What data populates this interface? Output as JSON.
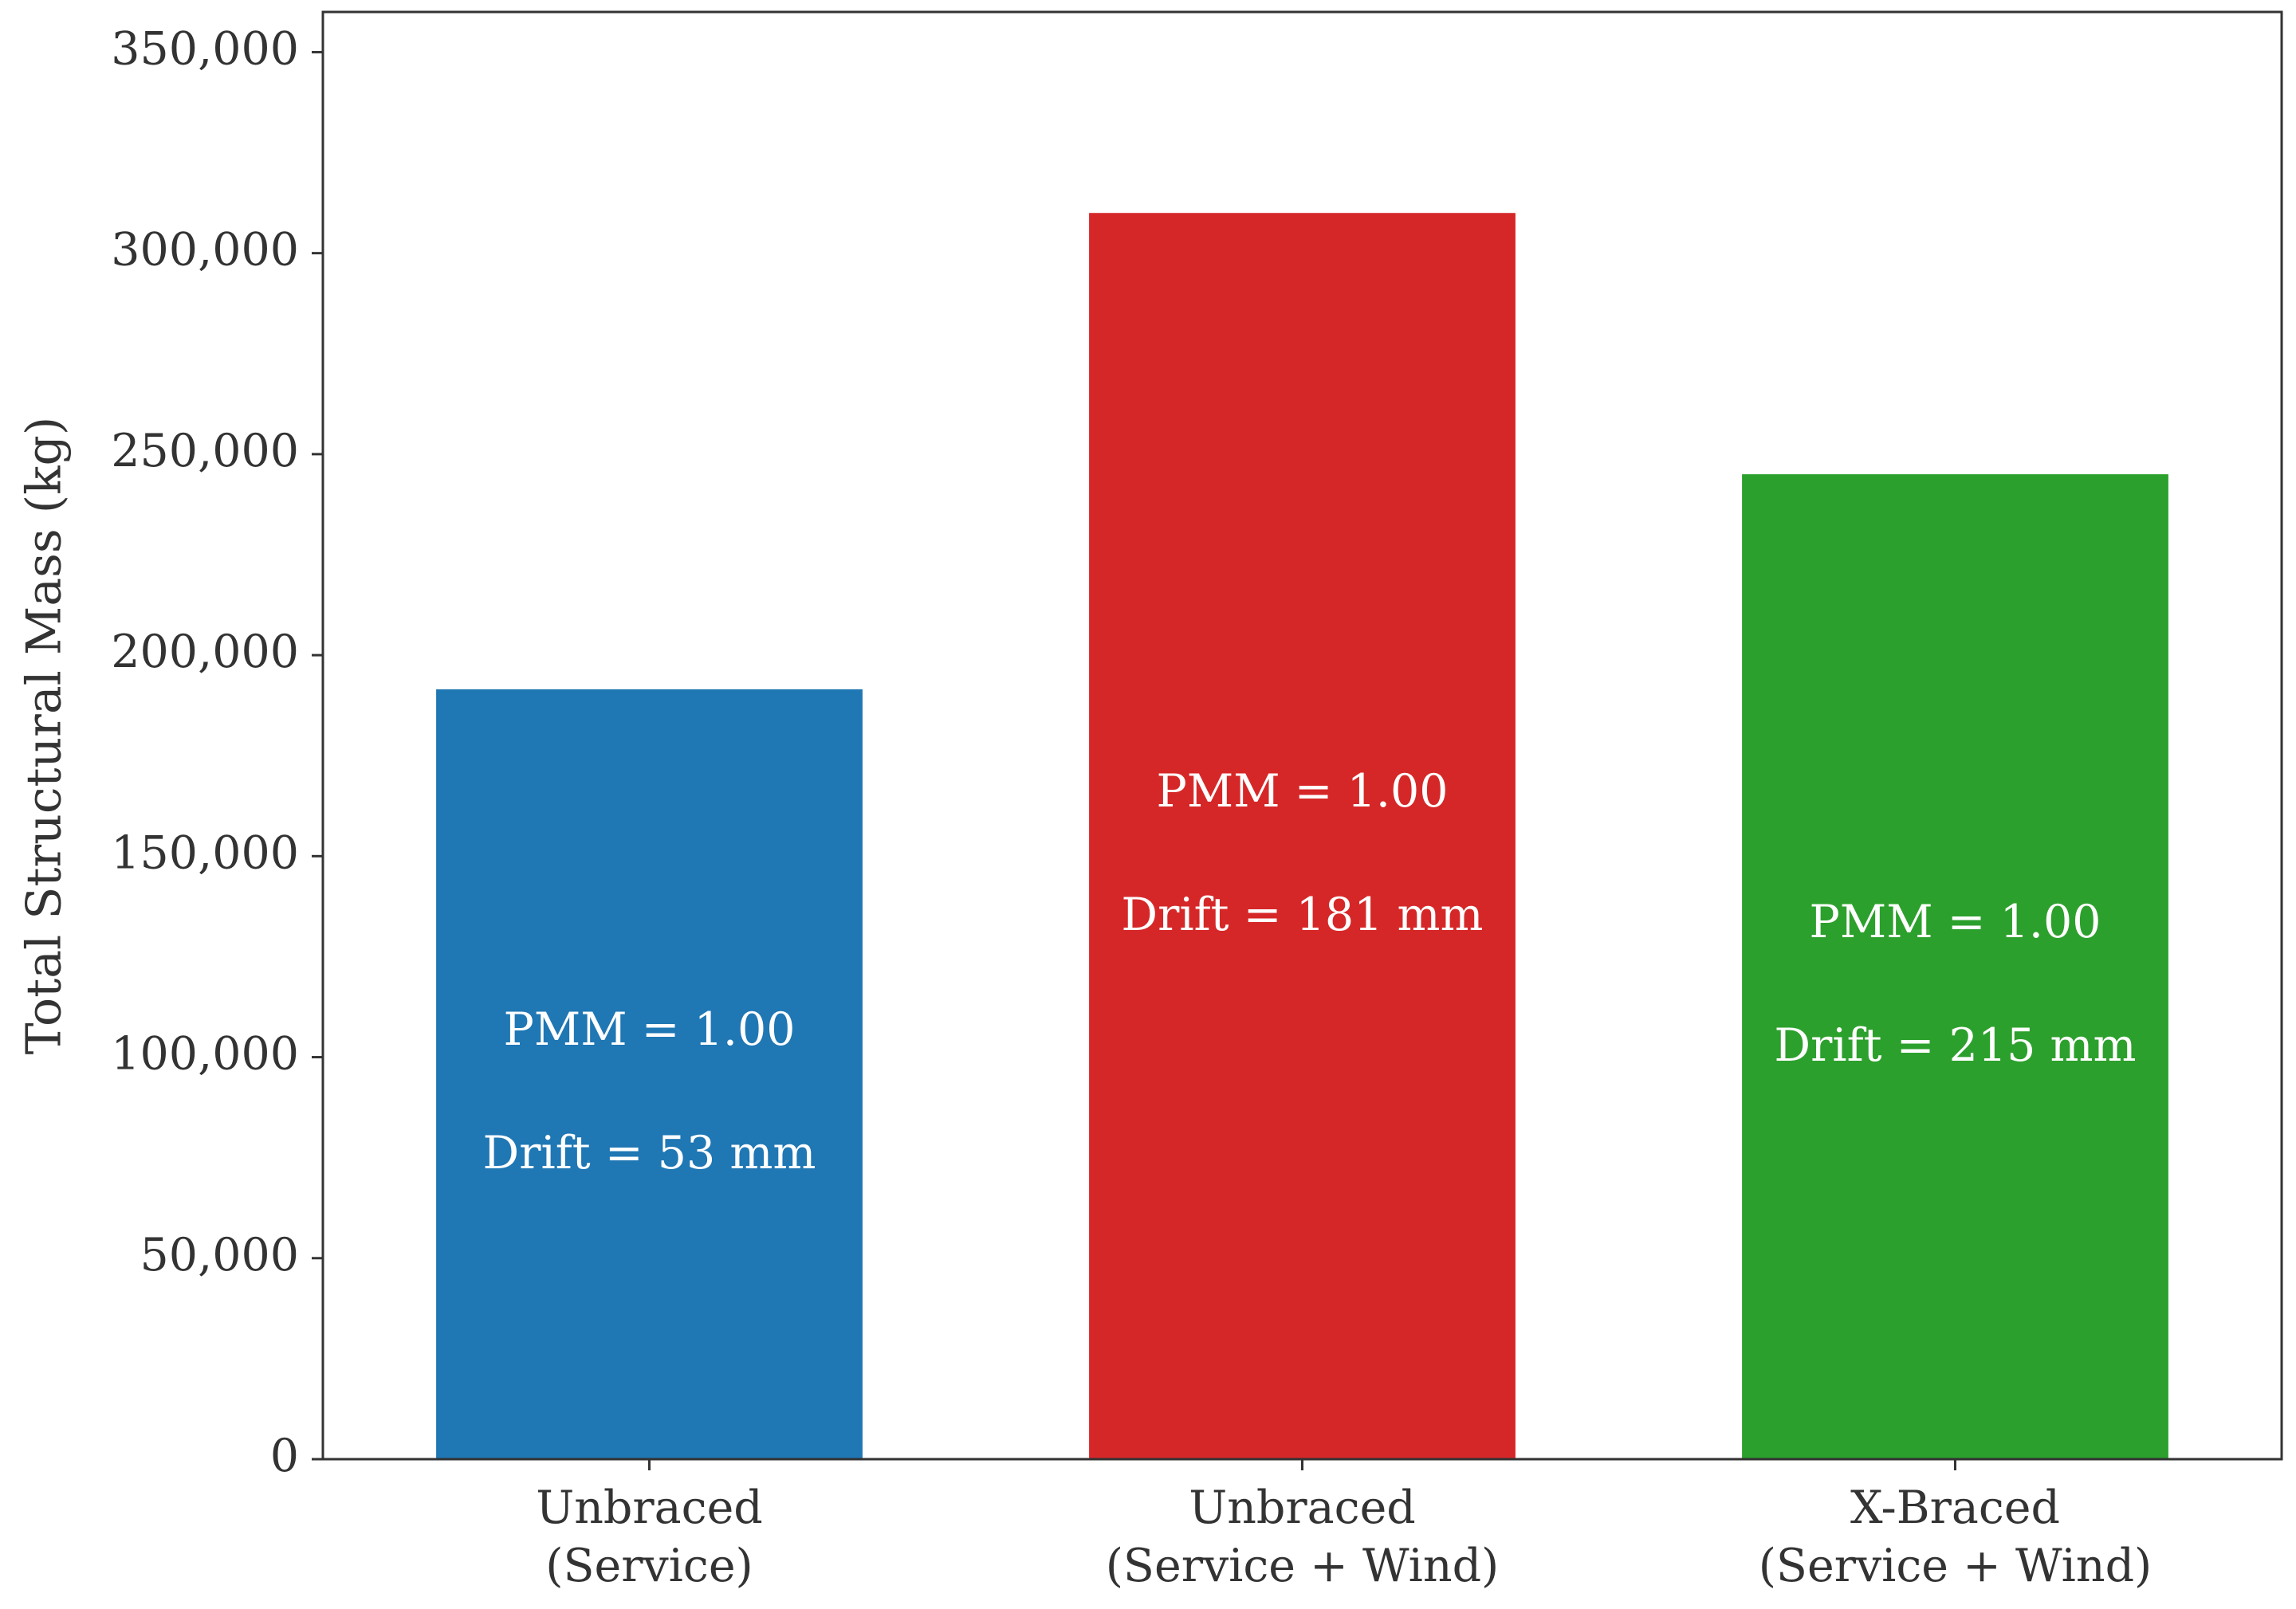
{
  "chart_data": {
    "type": "bar",
    "title": "",
    "xlabel": "",
    "ylabel": "Total Structural Mass (kg)",
    "ylim": [
      0,
      360000
    ],
    "yticks": [
      0,
      50000,
      100000,
      150000,
      200000,
      250000,
      300000,
      350000
    ],
    "ytick_labels": [
      "0",
      "50,000",
      "100,000",
      "150,000",
      "200,000",
      "250,000",
      "300,000",
      "350,000"
    ],
    "grid": false,
    "legend": "none",
    "categories": [
      [
        "Unbraced",
        "(Service)"
      ],
      [
        "Unbraced",
        "(Service + Wind)"
      ],
      [
        "X-Braced",
        "(Service + Wind)"
      ]
    ],
    "values": [
      191500,
      310000,
      245000
    ],
    "colors": [
      "#1f77b4",
      "#d62728",
      "#2ca02c"
    ],
    "annotations": [
      {
        "pmm": "PMM = 1.00",
        "drift": "Drift = 53 mm"
      },
      {
        "pmm": "PMM = 1.00",
        "drift": "Drift = 181 mm"
      },
      {
        "pmm": "PMM = 1.00",
        "drift": "Drift = 215 mm"
      }
    ],
    "text_color": "#333333",
    "axis_color": "#333333",
    "annotation_color": "#ffffff"
  }
}
